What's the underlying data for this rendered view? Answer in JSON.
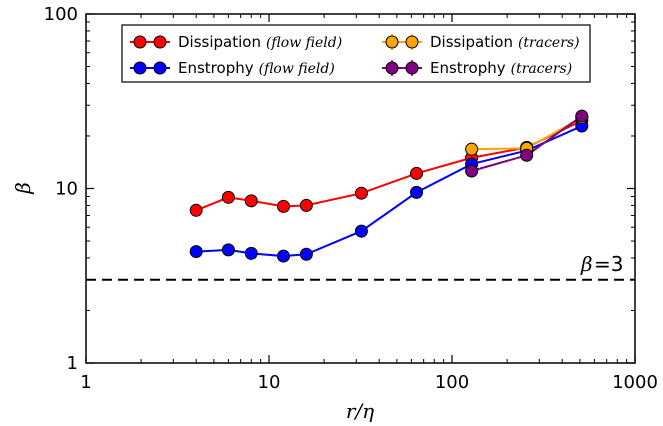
{
  "chart_data": {
    "type": "line",
    "xlabel": "r/η",
    "ylabel": "β",
    "xscale": "log",
    "yscale": "log",
    "xlim": [
      1,
      1000
    ],
    "ylim": [
      1,
      100
    ],
    "x_ticks": [
      {
        "value": 1,
        "label": "1"
      },
      {
        "value": 10,
        "label": "10"
      },
      {
        "value": 100,
        "label": "100"
      },
      {
        "value": 1000,
        "label": "1000"
      }
    ],
    "y_ticks": [
      {
        "value": 1,
        "label": "1"
      },
      {
        "value": 10,
        "label": "10"
      },
      {
        "value": 100,
        "label": "100"
      }
    ],
    "grid": false,
    "legend_position": "top",
    "series": [
      {
        "name": "Dissipation",
        "qualifier": "(flow field)",
        "color": "#ff0000",
        "x": [
          4,
          6,
          8,
          12,
          16,
          32,
          64,
          128,
          256,
          512
        ],
        "y": [
          7.5,
          8.9,
          8.5,
          7.9,
          8.0,
          9.4,
          12.2,
          15.0,
          17.2,
          24.5
        ],
        "error_bars": false
      },
      {
        "name": "Enstrophy",
        "qualifier": "(flow field)",
        "color": "#0000ff",
        "x": [
          4,
          6,
          8,
          12,
          16,
          32,
          64,
          128,
          256,
          512
        ],
        "y": [
          4.35,
          4.45,
          4.25,
          4.1,
          4.2,
          5.7,
          9.5,
          13.8,
          16.5,
          22.8
        ],
        "error_bars": false
      },
      {
        "name": "Dissipation",
        "qualifier": "(tracers)",
        "color": "#ffa500",
        "x": [
          128,
          256,
          512
        ],
        "y": [
          16.8,
          17.0,
          25.5
        ],
        "error_bars": true
      },
      {
        "name": "Enstrophy",
        "qualifier": "(tracers)",
        "color": "#800080",
        "x": [
          128,
          256,
          512
        ],
        "y": [
          12.6,
          15.5,
          26.0
        ],
        "error_bars": true
      }
    ],
    "reference_line": {
      "y": 3,
      "style": "dashed",
      "color": "#000000",
      "label_symbol": "β",
      "label_value": "=3"
    }
  }
}
